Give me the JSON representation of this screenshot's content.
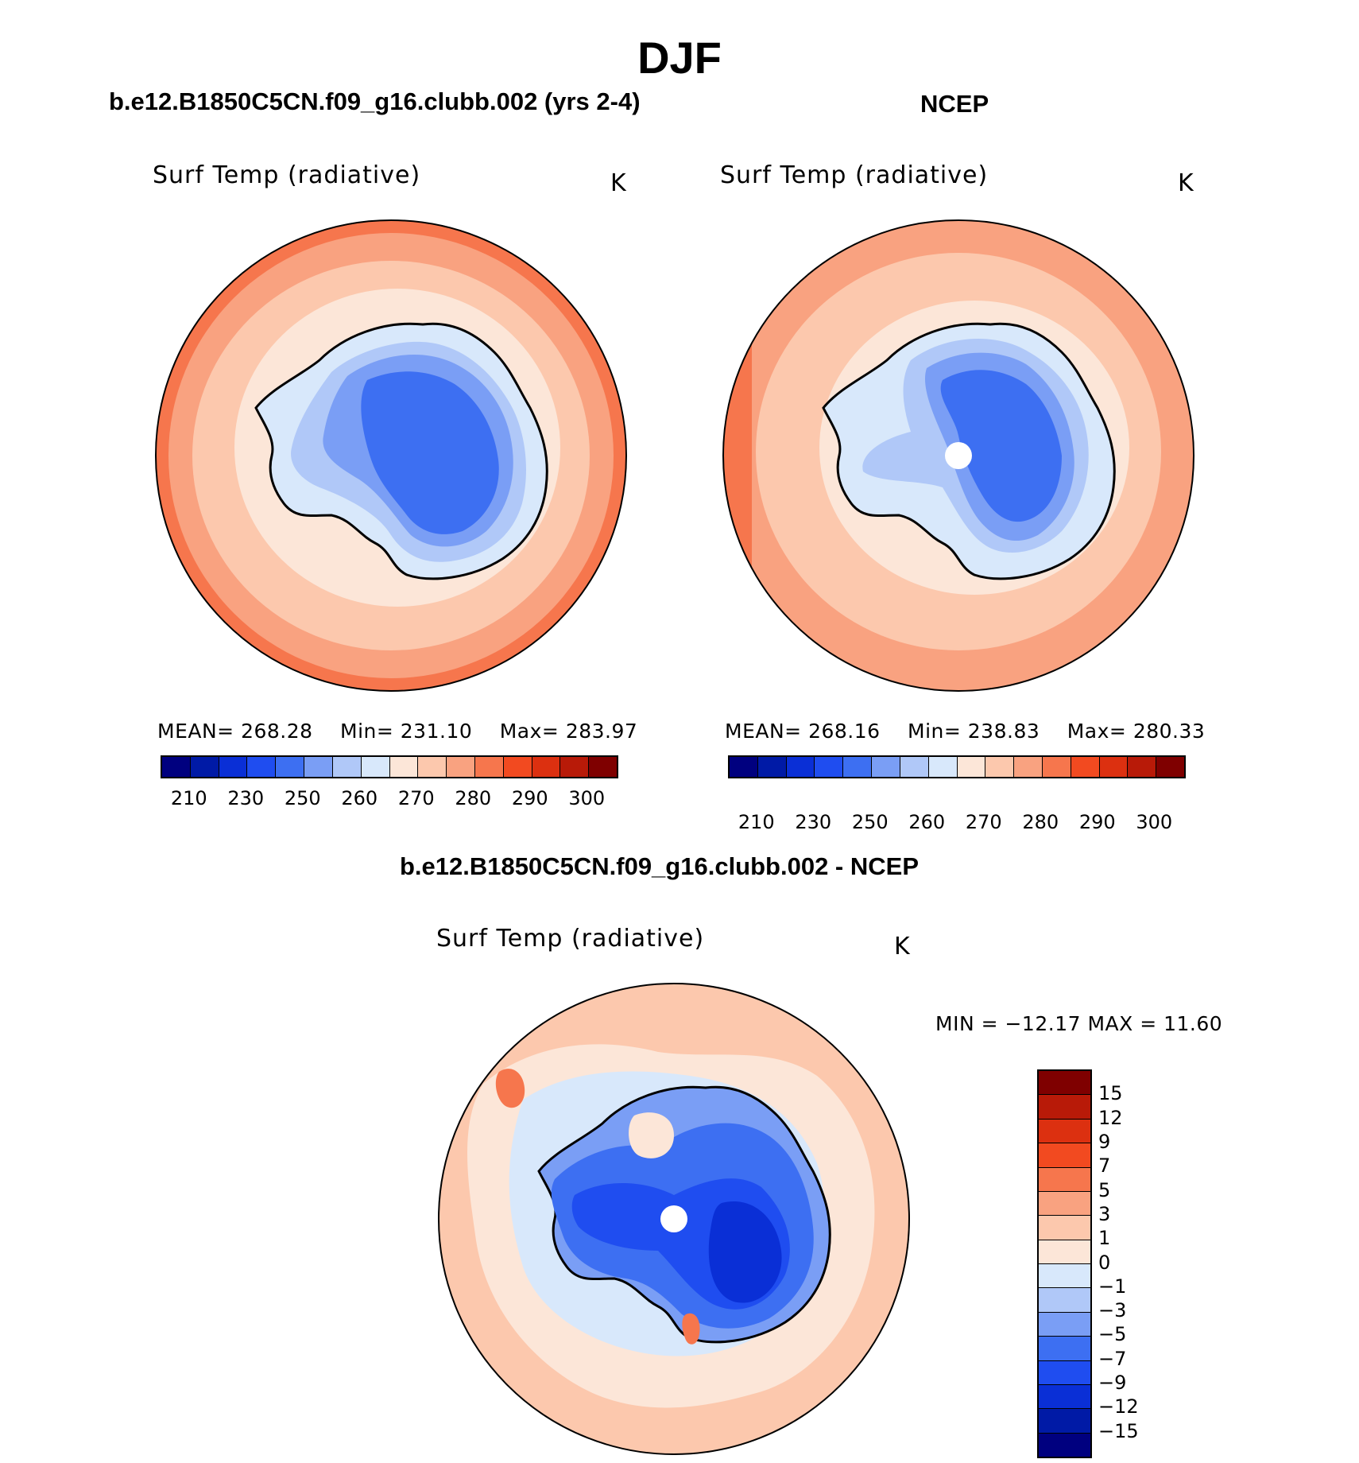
{
  "title": "DJF",
  "panels": {
    "model": {
      "subtitle": "b.e12.B1850C5CN.f09_g16.clubb.002 (yrs 2-4)",
      "variable": "Surf Temp (radiative)",
      "units": "K",
      "stats": {
        "mean_label": "MEAN=",
        "mean": "268.28",
        "min_label": "Min=",
        "min": "231.10",
        "max_label": "Max=",
        "max": "283.97"
      }
    },
    "obs": {
      "subtitle": "NCEP",
      "variable": "Surf Temp (radiative)",
      "units": "K",
      "stats": {
        "mean_label": "MEAN=",
        "mean": "268.16",
        "min_label": "Min=",
        "min": "238.83",
        "max_label": "Max=",
        "max": "280.33"
      }
    },
    "diff": {
      "subtitle": "b.e12.B1850C5CN.f09_g16.clubb.002 - NCEP",
      "variable": "Surf Temp (radiative)",
      "units": "K",
      "minmax": "MIN = −12.17 MAX =   11.60"
    }
  },
  "abs_colorbar": {
    "colors": [
      "#00007f",
      "#001aa6",
      "#0a2fd6",
      "#1f4df0",
      "#3d6ff2",
      "#7a9ef5",
      "#b0c8f8",
      "#d8e8fb",
      "#fce6d8",
      "#fcc8ad",
      "#f9a280",
      "#f6764d",
      "#f24a20",
      "#dc3010",
      "#b81a08",
      "#7f0000"
    ],
    "tick_labels": [
      "210",
      "230",
      "250",
      "260",
      "270",
      "280",
      "290",
      "300"
    ]
  },
  "diff_colorbar": {
    "colors": [
      "#7f0000",
      "#b81a08",
      "#dc3010",
      "#f24a20",
      "#f6764d",
      "#f9a280",
      "#fcc8ad",
      "#fce6d8",
      "#d8e8fb",
      "#b0c8f8",
      "#7a9ef5",
      "#3d6ff2",
      "#1f4df0",
      "#0a2fd6",
      "#001aa6",
      "#00007f"
    ],
    "tick_labels": [
      "15",
      "12",
      "9",
      "7",
      "5",
      "3",
      "1",
      "0",
      "−1",
      "−3",
      "−5",
      "−7",
      "−9",
      "−12",
      "−15"
    ]
  }
}
